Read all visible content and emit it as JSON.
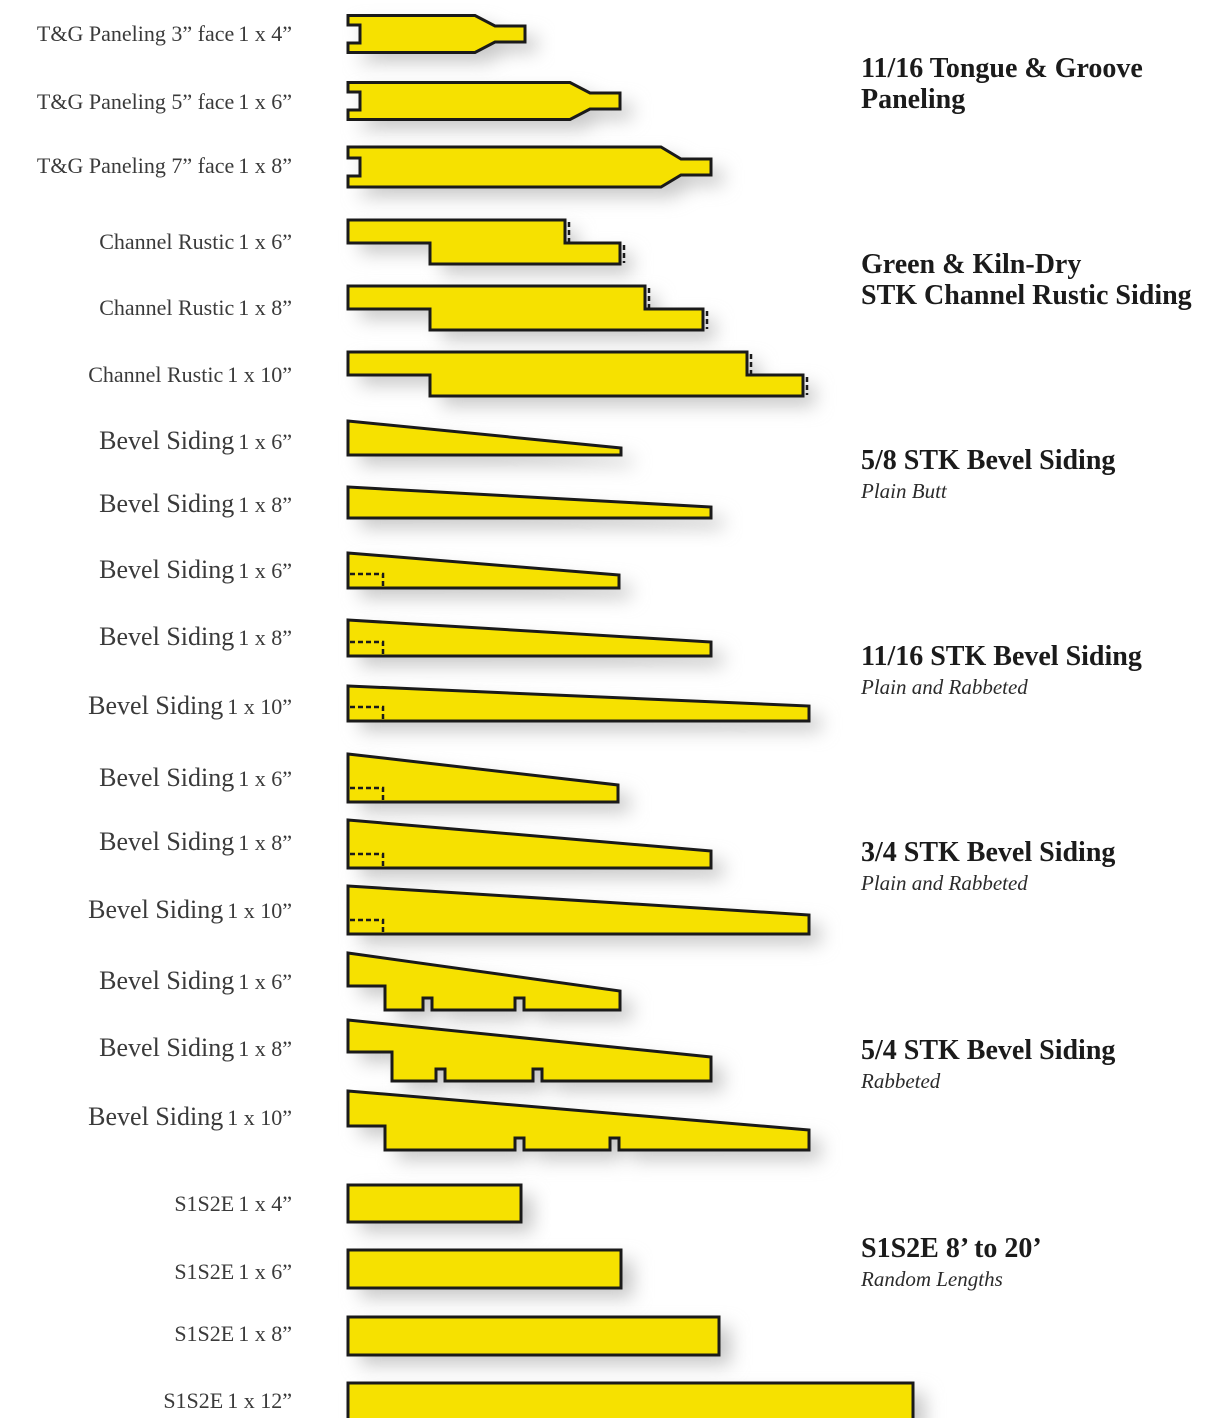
{
  "colors": {
    "board_fill": "#f6e100",
    "board_stroke": "#1a1a1a",
    "shadow": "#c8c8c8"
  },
  "rows": [
    {
      "name": "T&G Paneling 3” face",
      "dim": "1 x 4”"
    },
    {
      "name": "T&G Paneling 5” face",
      "dim": "1 x 6”"
    },
    {
      "name": "T&G Paneling 7” face",
      "dim": "1 x 8”"
    },
    {
      "name": "Channel Rustic",
      "dim": "1 x 6”"
    },
    {
      "name": "Channel Rustic",
      "dim": "1 x 8”"
    },
    {
      "name": "Channel Rustic",
      "dim": "1 x 10”"
    },
    {
      "name": "Bevel Siding",
      "dim": "1 x 6”"
    },
    {
      "name": "Bevel Siding",
      "dim": "1 x 8”"
    },
    {
      "name": "Bevel Siding",
      "dim": "1 x 6”"
    },
    {
      "name": "Bevel Siding",
      "dim": "1 x 8”"
    },
    {
      "name": "Bevel Siding",
      "dim": "1 x 10”"
    },
    {
      "name": "Bevel Siding",
      "dim": "1 x 6”"
    },
    {
      "name": "Bevel Siding",
      "dim": "1 x 8”"
    },
    {
      "name": "Bevel Siding",
      "dim": "1 x 10”"
    },
    {
      "name": "Bevel Siding",
      "dim": "1 x 6”"
    },
    {
      "name": "Bevel Siding",
      "dim": "1 x 8”"
    },
    {
      "name": "Bevel Siding",
      "dim": "1 x 10”"
    },
    {
      "name": "S1S2E",
      "dim": "1 x 4”"
    },
    {
      "name": "S1S2E",
      "dim": "1 x 6”"
    },
    {
      "name": "S1S2E",
      "dim": "1 x 8”"
    },
    {
      "name": "S1S2E",
      "dim": "1 x 12”"
    }
  ],
  "groups": [
    {
      "title": "11/16 Tongue & Groove\nPaneling",
      "subtitle": ""
    },
    {
      "title": "Green & Kiln-Dry\nSTK Channel Rustic Siding",
      "subtitle": ""
    },
    {
      "title": "5/8 STK Bevel Siding",
      "subtitle": "Plain Butt"
    },
    {
      "title": "11/16 STK Bevel Siding",
      "subtitle": "Plain and Rabbeted"
    },
    {
      "title": "3/4 STK Bevel Siding",
      "subtitle": "Plain and Rabbeted"
    },
    {
      "title": "5/4 STK Bevel Siding",
      "subtitle": "Rabbeted"
    },
    {
      "title": "S1S2E 8’ to 20’",
      "subtitle": "Random Lengths"
    }
  ]
}
